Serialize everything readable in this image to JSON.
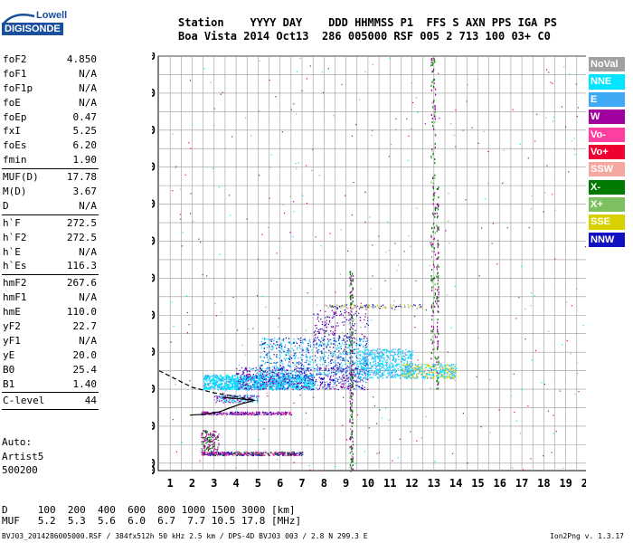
{
  "logo": {
    "brand": "Lowell",
    "name": "DIGISONDE"
  },
  "header": {
    "line1": "Station    YYYY DAY    DDD HHMMSS P1  FFS S AXN PPS IGA PS",
    "line2": "Boa Vista 2014 Oct13  286 005000 RSF 005 2 713 100 03+ C0"
  },
  "params": [
    [
      {
        "k": "foF2",
        "v": "4.850"
      },
      {
        "k": "foF1",
        "v": "N/A"
      },
      {
        "k": "foF1p",
        "v": "N/A"
      },
      {
        "k": "foE",
        "v": "N/A"
      },
      {
        "k": "foEp",
        "v": "0.47"
      },
      {
        "k": "fxI",
        "v": "5.25"
      },
      {
        "k": "foEs",
        "v": "6.20"
      },
      {
        "k": "fmin",
        "v": "1.90"
      }
    ],
    [
      {
        "k": "MUF(D)",
        "v": "17.78"
      },
      {
        "k": "M(D)",
        "v": "3.67"
      },
      {
        "k": "D",
        "v": "N/A"
      }
    ],
    [
      {
        "k": "h`F",
        "v": "272.5"
      },
      {
        "k": "h`F2",
        "v": "272.5"
      },
      {
        "k": "h`E",
        "v": "N/A"
      },
      {
        "k": "h`Es",
        "v": "116.3"
      }
    ],
    [
      {
        "k": "hmF2",
        "v": "267.6"
      },
      {
        "k": "hmF1",
        "v": "N/A"
      },
      {
        "k": "hmE",
        "v": "110.0"
      },
      {
        "k": "yF2",
        "v": "22.7"
      },
      {
        "k": "yF1",
        "v": "N/A"
      },
      {
        "k": "yE",
        "v": "20.0"
      },
      {
        "k": "B0",
        "v": "25.4"
      },
      {
        "k": "B1",
        "v": "1.40"
      }
    ],
    [
      {
        "k": "C-level",
        "v": "44"
      }
    ]
  ],
  "auto": {
    "line1": "Auto:",
    "line2": "Artist5",
    "line3": "500200"
  },
  "legend": [
    {
      "label": "NoVal",
      "color": "#a0a0a0"
    },
    {
      "label": "NNE",
      "color": "#00e5ff"
    },
    {
      "label": "E",
      "color": "#3fa9f5"
    },
    {
      "label": "W",
      "color": "#a0009f"
    },
    {
      "label": "Vo-",
      "color": "#ff3fa0"
    },
    {
      "label": "Vo+",
      "color": "#ee0030"
    },
    {
      "label": "SSW",
      "color": "#f5a8a0"
    },
    {
      "label": "X-",
      "color": "#007a00"
    },
    {
      "label": "X+",
      "color": "#7cc060"
    },
    {
      "label": "SSE",
      "color": "#d8d000"
    },
    {
      "label": "NNW",
      "color": "#1010c0"
    }
  ],
  "chart_data": {
    "type": "scatter",
    "title": "",
    "xlabel": "",
    "ylabel": "",
    "xlim": [
      0.5,
      20
    ],
    "ylim": [
      80,
      1200
    ],
    "x_ticks": [
      "1",
      "2",
      "3",
      "4",
      "5",
      "6",
      "7",
      "8",
      "9",
      "10",
      "11",
      "12",
      "13",
      "14",
      "15",
      "16",
      "17",
      "18",
      "19",
      "20"
    ],
    "y_ticks": [
      "80",
      "100",
      "200",
      "300",
      "400",
      "500",
      "600",
      "700",
      "800",
      "900",
      "1000",
      "1100",
      "1200"
    ],
    "y_tick_values": [
      80,
      100,
      200,
      300,
      400,
      500,
      600,
      700,
      800,
      900,
      1000,
      1100,
      1200
    ],
    "grid": true,
    "profile_line": [
      [
        1.9,
        230
      ],
      [
        2.5,
        232
      ],
      [
        3.2,
        238
      ],
      [
        4.2,
        260
      ],
      [
        4.85,
        270
      ],
      [
        4.0,
        275
      ],
      [
        3.4,
        278
      ]
    ],
    "trace_line": [
      [
        0.5,
        350
      ],
      [
        2.0,
        305
      ],
      [
        3.0,
        290
      ],
      [
        4.0,
        280
      ],
      [
        4.85,
        270
      ]
    ],
    "series": [
      {
        "name": "NNE",
        "x_range": [
          2.5,
          14
        ],
        "y_range": [
          300,
          400
        ]
      },
      {
        "name": "E",
        "x_range": [
          5.5,
          14
        ],
        "y_range": [
          320,
          440
        ]
      },
      {
        "name": "W",
        "x_range": [
          2.5,
          7
        ],
        "y_range": [
          120,
          160
        ]
      },
      {
        "name": "NNW",
        "x_range": [
          3,
          10
        ],
        "y_range": [
          300,
          500
        ]
      },
      {
        "name": "SSE",
        "x_range": [
          11,
          14
        ],
        "y_range": [
          330,
          370
        ]
      },
      {
        "name": "X-",
        "x_range": [
          9.1,
          9.3
        ],
        "y_range": [
          80,
          620
        ]
      }
    ]
  },
  "d_table": {
    "line1": "D     100  200  400  600  800 1000 1500 3000 [km]",
    "line2": "MUF   5.2  5.3  5.6  6.0  6.7  7.7 10.5 17.8 [MHz]"
  },
  "footer": "BVJ03_2014286005000.RSF / 384fx512h 50 kHz 2.5 km / DPS-4D BVJ03 003 / 2.8 N 299.3 E",
  "version": "Ion2Png v. 1.3.17"
}
